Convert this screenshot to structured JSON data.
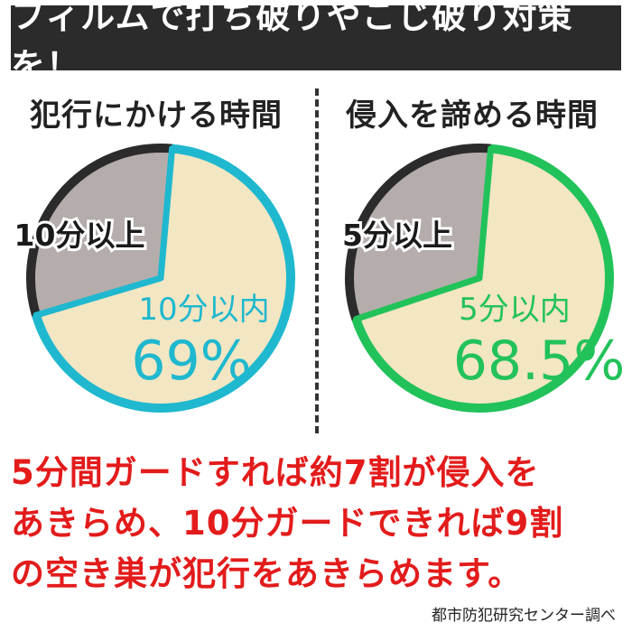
{
  "banner": {
    "title": "フィルムで打ち破りやこじ破り対策を！"
  },
  "message": {
    "lines": [
      "5分間ガードすれば約7割が侵入を",
      "あきらめ、10分ガードできれば9割",
      "の空き巣が犯行をあきらめます。"
    ]
  },
  "source": "都市防犯研究センター調べ",
  "chart_data": [
    {
      "type": "pie",
      "title": "犯行にかける時間",
      "slices": [
        {
          "label": "10分以内",
          "value": 69,
          "value_label": "69%",
          "color": "#f3e6c3",
          "border_color": "#1fb8cf"
        },
        {
          "label": "10分以上",
          "value": 31,
          "value_label": "",
          "color": "#b5adab",
          "border_color": "#2b2b2b"
        }
      ],
      "legend": "none"
    },
    {
      "type": "pie",
      "title": "侵入を諦める時間",
      "slices": [
        {
          "label": "5分以内",
          "value": 68.5,
          "value_label": "68.5%",
          "color": "#f3e6c3",
          "border_color": "#22c25a"
        },
        {
          "label": "5分以上",
          "value": 31.5,
          "value_label": "",
          "color": "#b5adab",
          "border_color": "#2b2b2b"
        }
      ],
      "legend": "none"
    }
  ]
}
